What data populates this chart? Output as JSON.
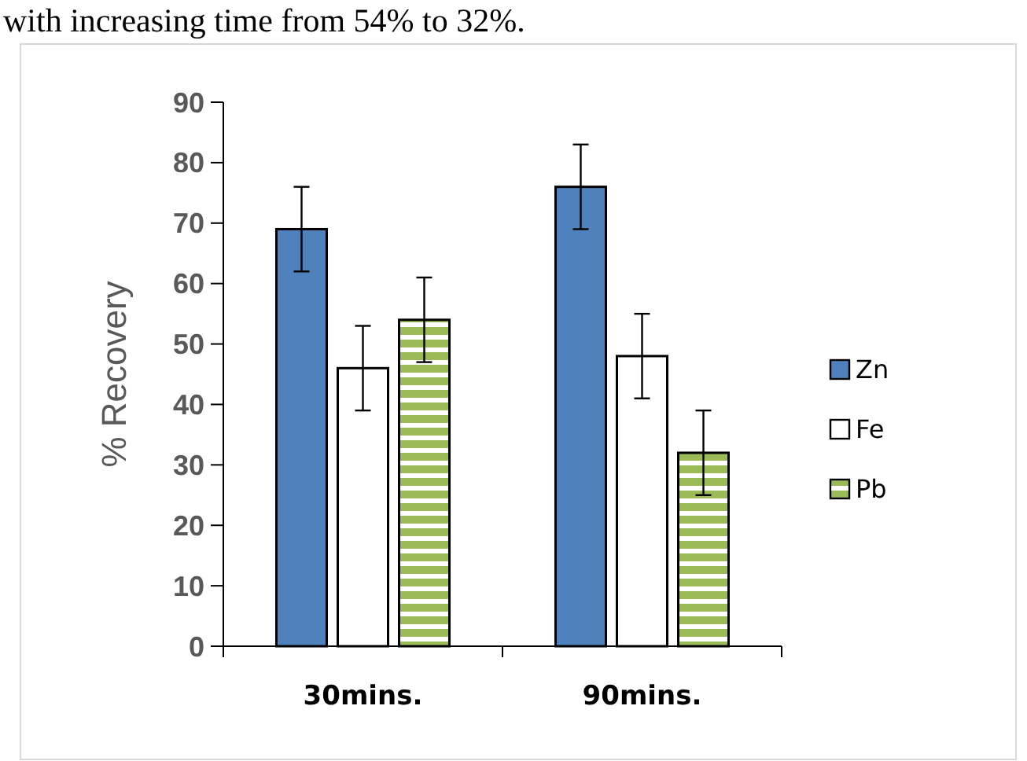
{
  "chart_data": {
    "type": "bar",
    "ylabel": "% Recovery",
    "categories": [
      "30mins.",
      "90mins."
    ],
    "series": [
      {
        "name": "Zn",
        "color": "#4f81bd",
        "values": [
          69,
          76
        ],
        "errors": [
          7,
          7
        ]
      },
      {
        "name": "Fe",
        "color": "#ffffff",
        "values": [
          46,
          48
        ],
        "errors": [
          7,
          7
        ]
      },
      {
        "name": "Pb",
        "color": "#9bbb59",
        "values": [
          54,
          32
        ],
        "errors": [
          7,
          7
        ]
      }
    ],
    "ylim": [
      0,
      90
    ],
    "yticks": [
      0,
      10,
      20,
      30,
      40,
      50,
      60,
      70,
      80,
      90
    ],
    "grid": false,
    "legend": "right",
    "annotations": [
      "with increasing time from 54% to 32%."
    ]
  }
}
